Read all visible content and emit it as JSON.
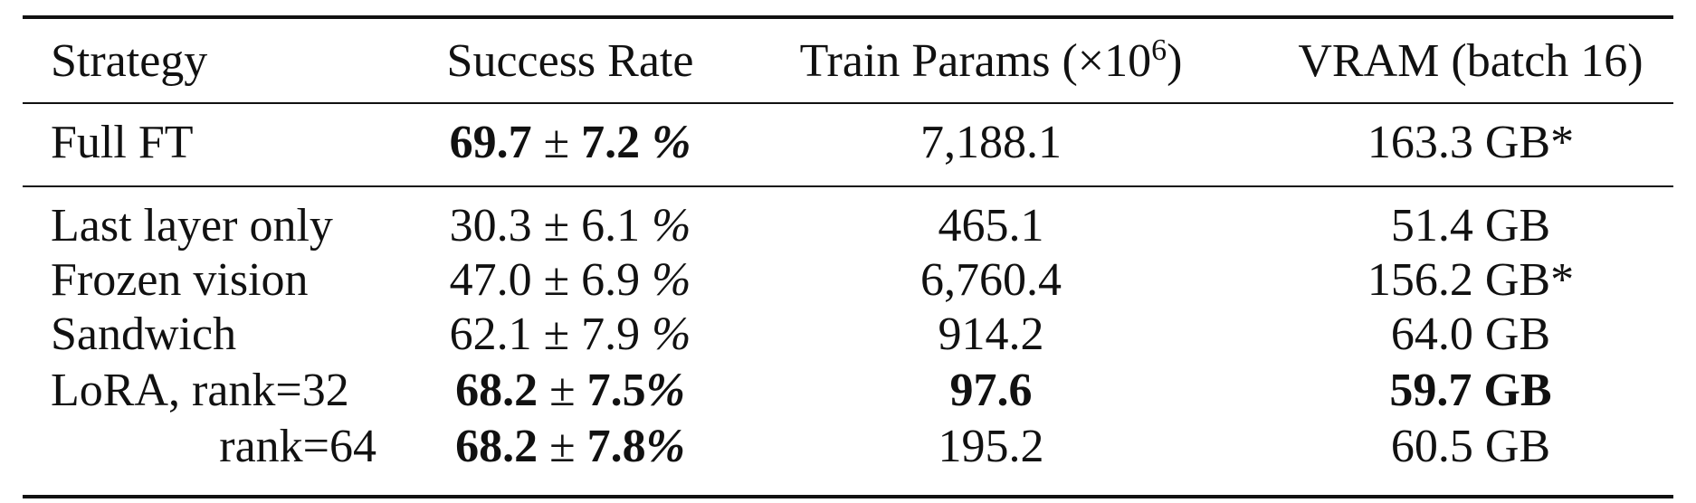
{
  "table": {
    "headers": {
      "strategy": "Strategy",
      "success_rate": "Success Rate",
      "train_params_prefix": "Train Params (×10",
      "train_params_exp": "6",
      "train_params_suffix": ")",
      "vram": "VRAM (batch 16)"
    },
    "rows": [
      {
        "strategy": "Full FT",
        "success_mean": "69.7",
        "pm": "±",
        "success_std": "7.2",
        "success_unit": "%",
        "params": "7,188.1",
        "vram": "163.3 GB*"
      },
      {
        "strategy": "Last layer only",
        "success_mean": "30.3",
        "pm": "±",
        "success_std": "6.1",
        "success_unit": "%",
        "params": "465.1",
        "vram": "51.4 GB"
      },
      {
        "strategy": "Frozen vision",
        "success_mean": "47.0",
        "pm": "±",
        "success_std": "6.9",
        "success_unit": "%",
        "params": "6,760.4",
        "vram": "156.2 GB*"
      },
      {
        "strategy": "Sandwich",
        "success_mean": "62.1",
        "pm": "±",
        "success_std": "7.9",
        "success_unit": "%",
        "params": "914.2",
        "vram": "64.0 GB"
      },
      {
        "strategy": "LoRA, rank=32",
        "success_mean": "68.2",
        "pm": "±",
        "success_std": "7.5",
        "success_unit": "%",
        "params": "97.6",
        "vram": "59.7 GB"
      },
      {
        "strategy": "rank=64",
        "success_mean": "68.2",
        "pm": "±",
        "success_std": "7.8",
        "success_unit": "%",
        "params": "195.2",
        "vram": "60.5 GB"
      }
    ]
  }
}
